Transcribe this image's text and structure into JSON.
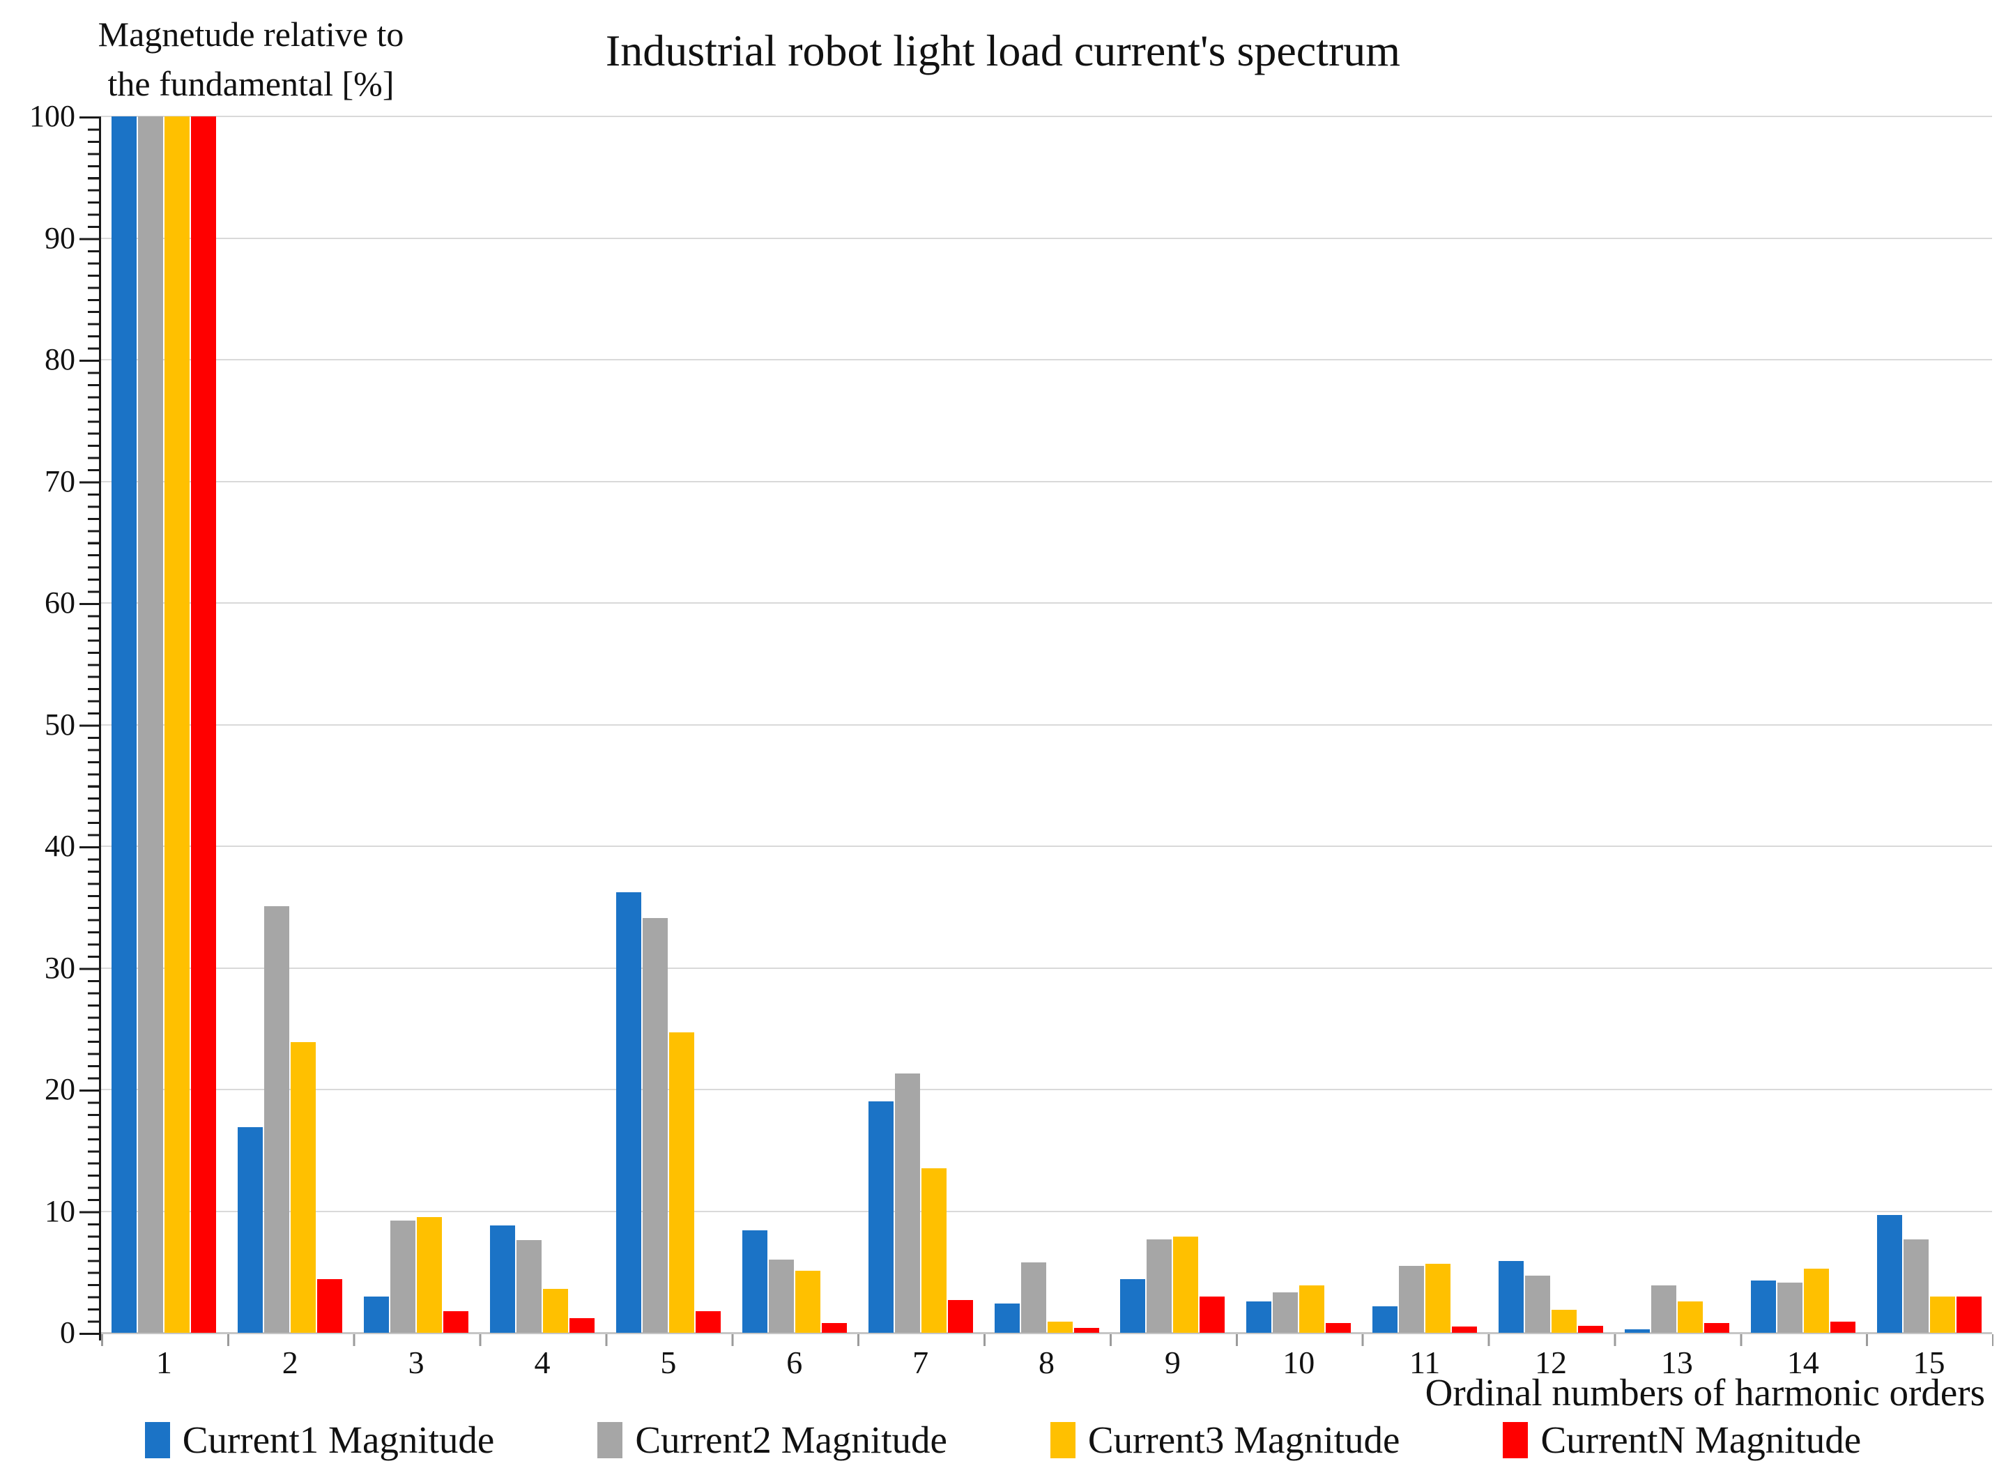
{
  "header": {
    "y_axis_title_line1": "Magnetude relative to",
    "y_axis_title_line2": "the fundamental [%]",
    "title": "Industrial robot light load current's spectrum"
  },
  "axes": {
    "x_axis_title": "Ordinal numbers of harmonic orders",
    "y_tick_labels": [
      "100",
      "90",
      "80",
      "70",
      "60",
      "50",
      "40",
      "30",
      "20",
      "10",
      "0"
    ],
    "x_tick_labels": [
      "1",
      "2",
      "3",
      "4",
      "5",
      "6",
      "7",
      "8",
      "9",
      "10",
      "11",
      "12",
      "13",
      "14",
      "15"
    ]
  },
  "colors": {
    "series_blue": "#1B73C6",
    "series_gray": "#A6A6A6",
    "series_yellow": "#FFC000",
    "series_red": "#FF0000",
    "gridline": "#D9D9D9",
    "axis_line": "#1A1A1A"
  },
  "chart_data": {
    "type": "bar",
    "title": "Industrial robot light load current's spectrum",
    "xlabel": "Ordinal numbers of harmonic orders",
    "ylabel": "Magnetude relative to the fundamental [%]",
    "ylim": [
      0,
      100
    ],
    "ytick_step": 10,
    "grid": true,
    "legend_position": "bottom",
    "categories": [
      "1",
      "2",
      "3",
      "4",
      "5",
      "6",
      "7",
      "8",
      "9",
      "10",
      "11",
      "12",
      "13",
      "14",
      "15"
    ],
    "series": [
      {
        "name": "Current1 Magnitude",
        "color": "#1B73C6",
        "values": [
          100,
          16.9,
          3.0,
          8.8,
          36.2,
          8.4,
          19.0,
          2.4,
          4.4,
          2.6,
          2.2,
          5.9,
          0.3,
          4.3,
          9.7
        ]
      },
      {
        "name": "Current2 Magnitude",
        "color": "#A6A6A6",
        "values": [
          100,
          35.1,
          9.2,
          7.6,
          34.1,
          6.0,
          21.3,
          5.8,
          7.7,
          3.3,
          5.5,
          4.7,
          3.9,
          4.1,
          7.7
        ]
      },
      {
        "name": "Current3 Magnitude",
        "color": "#FFC000",
        "values": [
          100,
          23.9,
          9.5,
          3.6,
          24.7,
          5.1,
          13.5,
          0.9,
          7.9,
          3.9,
          5.7,
          1.9,
          2.6,
          5.3,
          3.0
        ]
      },
      {
        "name": "CurrentN Magnitude",
        "color": "#FF0000",
        "values": [
          100,
          4.4,
          1.8,
          1.2,
          1.8,
          0.8,
          2.7,
          0.4,
          3.0,
          0.8,
          0.5,
          0.6,
          0.8,
          0.9,
          3.0
        ]
      }
    ]
  }
}
